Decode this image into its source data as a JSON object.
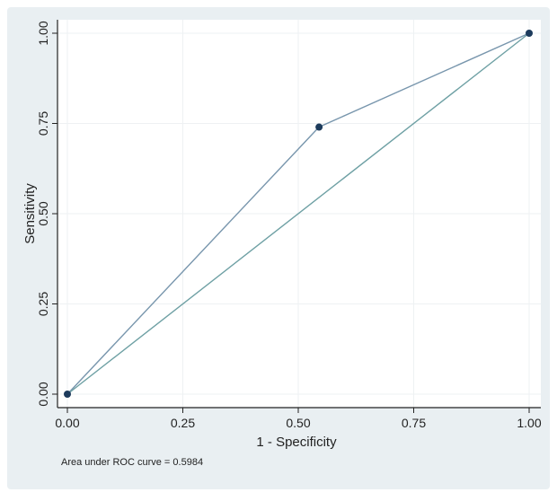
{
  "chart_data": {
    "type": "line",
    "xlabel": "1 - Specificity",
    "ylabel": "Sensitivity",
    "xlim": [
      0,
      1
    ],
    "ylim": [
      0,
      1
    ],
    "x_ticks": [
      "0.00",
      "0.25",
      "0.50",
      "0.75",
      "1.00"
    ],
    "y_ticks": [
      "0.00",
      "0.25",
      "0.50",
      "0.75",
      "1.00"
    ],
    "grid": true,
    "legend": "none",
    "series": [
      {
        "role": "roc-curve",
        "x": [
          0,
          0.545,
          1
        ],
        "y": [
          0,
          0.74,
          1
        ],
        "markers": true
      },
      {
        "role": "reference-line",
        "x": [
          0,
          1
        ],
        "y": [
          0,
          1
        ],
        "markers": false
      }
    ],
    "annotation": "Area under ROC curve = 0.5984"
  },
  "colors": {
    "outer_background": "#e9eff2",
    "plot_background": "#ffffff",
    "grid": "#eef1f3",
    "roc_line": "#7896ad",
    "marker": "#1d3b5c",
    "reference_line": "#6ea0a4",
    "axis": "#222222",
    "text": "#222222"
  }
}
